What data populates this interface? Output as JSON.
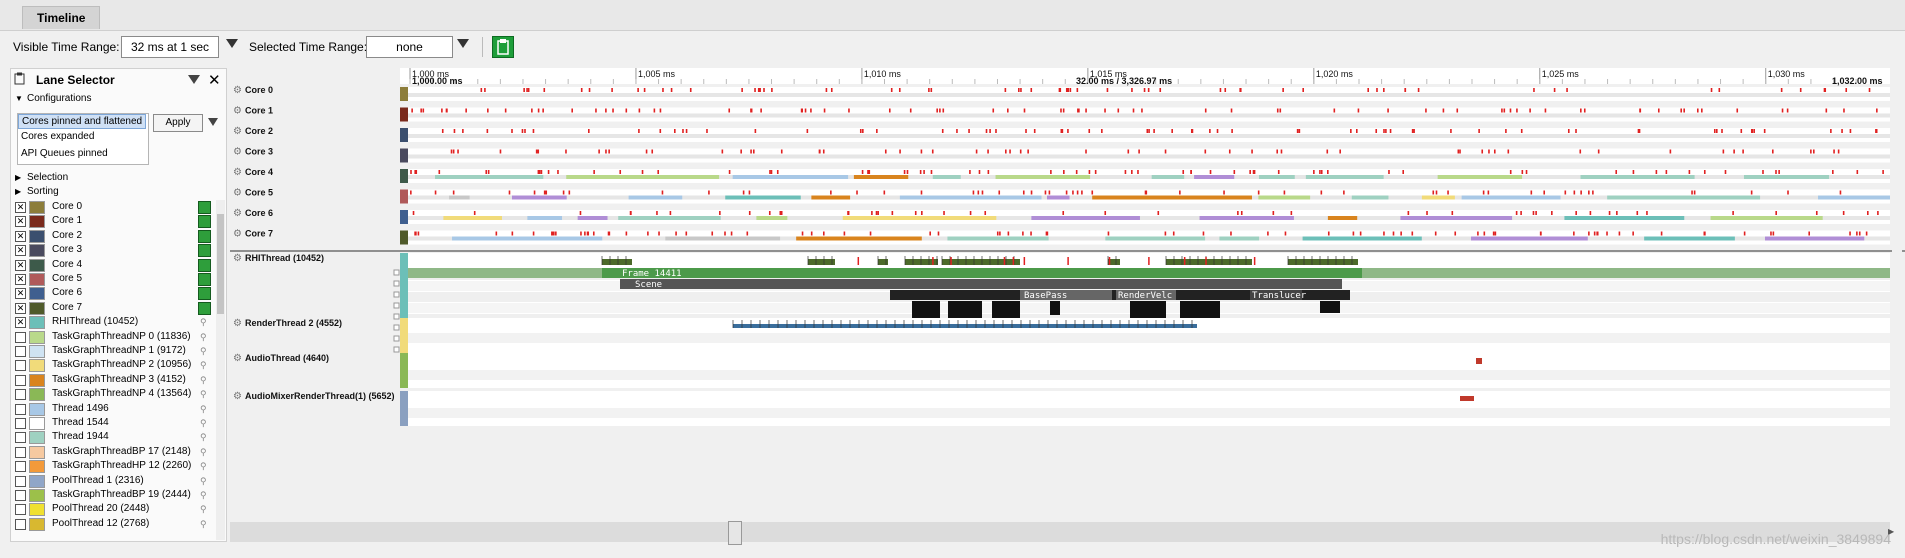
{
  "tab": {
    "label": "Timeline"
  },
  "toolbar": {
    "visible_label": "Visible Time Range:",
    "visible_value": "32 ms at 1 sec",
    "selected_label": "Selected Time Range:",
    "selected_value": "none"
  },
  "lane_selector": {
    "title": "Lane Selector",
    "configurations_label": "Configurations",
    "configs": [
      "Cores pinned and flattened",
      "Cores expanded",
      "API Queues pinned"
    ],
    "apply_label": "Apply",
    "selection_label": "Selection",
    "sorting_label": "Sorting",
    "lanes": [
      {
        "name": "Core 0",
        "color": "#8c7d3a",
        "checked": true,
        "green": true
      },
      {
        "name": "Core 1",
        "color": "#7a2a1c",
        "checked": true,
        "green": true
      },
      {
        "name": "Core 2",
        "color": "#3b4f6e",
        "checked": true,
        "green": true
      },
      {
        "name": "Core 3",
        "color": "#4a4a5e",
        "checked": true,
        "green": true
      },
      {
        "name": "Core 4",
        "color": "#3d5a4a",
        "checked": true,
        "green": true
      },
      {
        "name": "Core 5",
        "color": "#b05a5a",
        "checked": true,
        "green": true
      },
      {
        "name": "Core 6",
        "color": "#3f5f8f",
        "checked": true,
        "green": true
      },
      {
        "name": "Core 7",
        "color": "#4f5a2a",
        "checked": true,
        "green": true
      },
      {
        "name": "RHIThread (10452)",
        "color": "#6cbfb8",
        "checked": true,
        "green": false
      },
      {
        "name": "TaskGraphThreadNP 0 (11836)",
        "color": "#b9d98a",
        "checked": false,
        "green": false
      },
      {
        "name": "TaskGraphThreadNP 1 (9172)",
        "color": "#cfe3f2",
        "checked": false,
        "green": false
      },
      {
        "name": "TaskGraphThreadNP 2 (10956)",
        "color": "#f1db7a",
        "checked": false,
        "green": false
      },
      {
        "name": "TaskGraphThreadNP 3 (4152)",
        "color": "#d9841e",
        "checked": false,
        "green": false
      },
      {
        "name": "TaskGraphThreadNP 4 (13564)",
        "color": "#8ab856",
        "checked": false,
        "green": false
      },
      {
        "name": "Thread 1496",
        "color": "#a8c8e6",
        "checked": false,
        "green": false
      },
      {
        "name": "Thread 1544",
        "color": "#ffffff",
        "checked": false,
        "green": false
      },
      {
        "name": "Thread 1944",
        "color": "#9fd1c1",
        "checked": false,
        "green": false
      },
      {
        "name": "TaskGraphThreadBP 17 (2148)",
        "color": "#f6c9a0",
        "checked": false,
        "green": false
      },
      {
        "name": "TaskGraphThreadHP 12 (2260)",
        "color": "#f39a3a",
        "checked": false,
        "green": false
      },
      {
        "name": "PoolThread 1 (2316)",
        "color": "#90a6c8",
        "checked": false,
        "green": false
      },
      {
        "name": "TaskGraphThreadBP 19 (2444)",
        "color": "#9cc04a",
        "checked": false,
        "green": false
      },
      {
        "name": "PoolThread 20 (2448)",
        "color": "#f0e030",
        "checked": false,
        "green": false
      },
      {
        "name": "PoolThread 12 (2768)",
        "color": "#d8b830",
        "checked": false,
        "green": false
      }
    ]
  },
  "ruler": {
    "ticks": [
      "1,000 ms",
      "1,005 ms",
      "1,010 ms",
      "1,015 ms",
      "1,020 ms",
      "1,025 ms",
      "1,030 ms"
    ],
    "start": "1,000.00 ms",
    "center": "32.00 ms / 3,326.97 ms",
    "end": "1,032.00 ms"
  },
  "cores": [
    "Core 0",
    "Core 1",
    "Core 2",
    "Core 3",
    "Core 4",
    "Core 5",
    "Core 6",
    "Core 7"
  ],
  "threads": [
    {
      "name": "RHIThread (10452)",
      "color": "#6cbfb8"
    },
    {
      "name": "RenderThread 2 (4552)",
      "color": "#f1db7a"
    },
    {
      "name": "AudioThread (4640)",
      "color": "#8ab856"
    },
    {
      "name": "AudioMixerRenderThread(1) (5652)",
      "color": "#8aa0c0"
    }
  ],
  "events": {
    "frame": "Frame 14411",
    "scene": "Scene",
    "basepass": "BasePass",
    "rendervel": "RenderVelc",
    "transluc": "Translucer"
  },
  "watermark": "https://blog.csdn.net/weixin_3849894"
}
